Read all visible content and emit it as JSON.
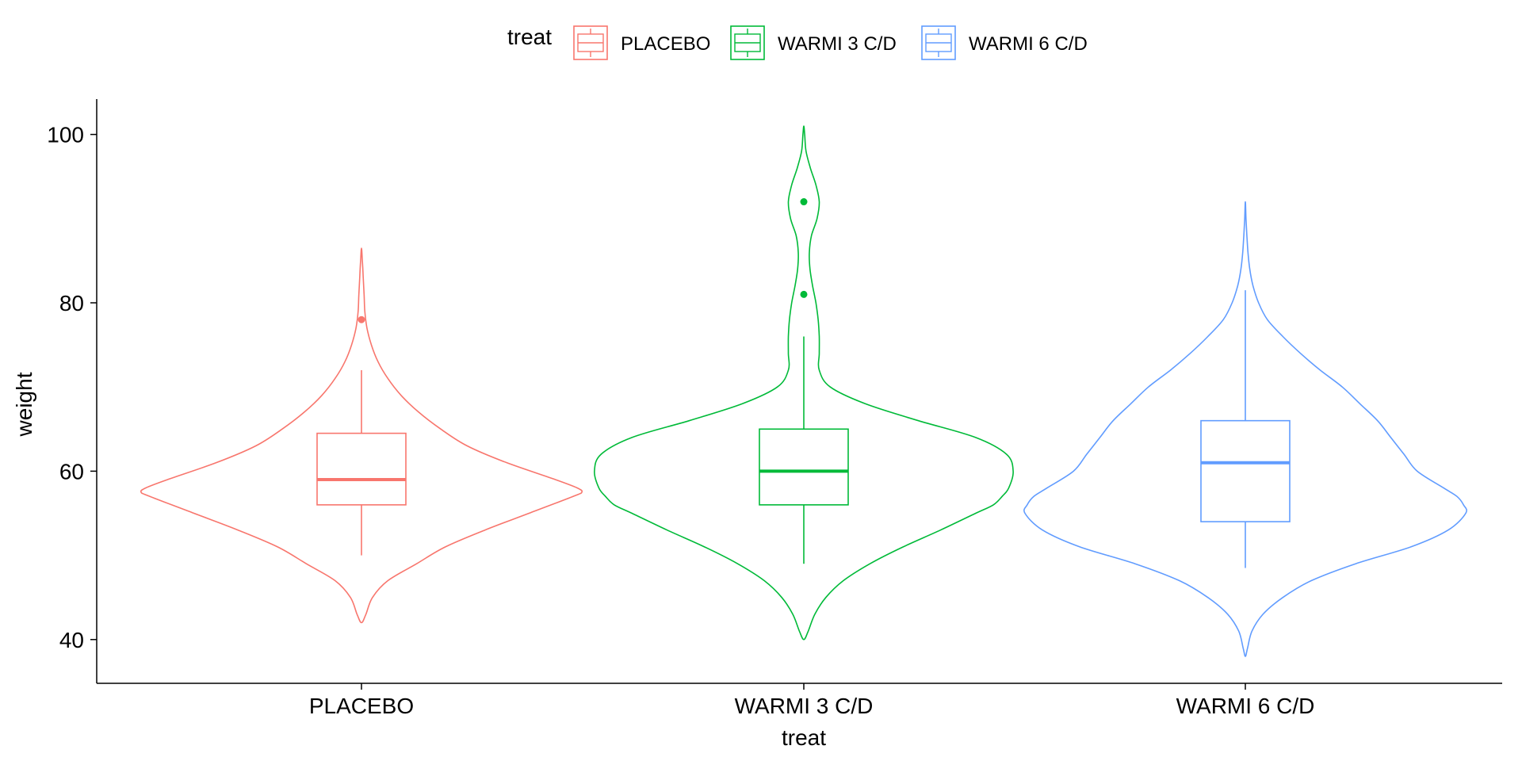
{
  "chart_data": {
    "type": "violin",
    "title": "",
    "xlabel": "treat",
    "ylabel": "weight",
    "ylim": [
      34.8,
      104.2
    ],
    "yticks": [
      40,
      60,
      80,
      100
    ],
    "categories": [
      "PLACEBO",
      "WARMI 3 C/D",
      "WARMI 6 C/D"
    ],
    "legend": {
      "title": "treat",
      "position": "top",
      "entries": [
        "PLACEBO",
        "WARMI 3 C/D",
        "WARMI 6 C/D"
      ]
    },
    "grid": false,
    "series": [
      {
        "name": "PLACEBO",
        "color": "#F8766D",
        "box": {
          "lower_whisker": 50,
          "q1": 56,
          "median": 59,
          "q3": 64.5,
          "upper_whisker": 72
        },
        "outliers": [
          78
        ],
        "violin": [
          [
            42,
            0
          ],
          [
            43,
            0.02
          ],
          [
            45,
            0.05
          ],
          [
            47,
            0.12
          ],
          [
            49,
            0.25
          ],
          [
            51,
            0.38
          ],
          [
            53,
            0.56
          ],
          [
            55,
            0.76
          ],
          [
            57,
            0.96
          ],
          [
            57.5,
            1.0
          ],
          [
            58,
            0.98
          ],
          [
            59,
            0.88
          ],
          [
            61,
            0.66
          ],
          [
            63,
            0.48
          ],
          [
            65,
            0.36
          ],
          [
            67,
            0.26
          ],
          [
            69,
            0.18
          ],
          [
            71,
            0.12
          ],
          [
            73,
            0.075
          ],
          [
            75,
            0.045
          ],
          [
            77,
            0.025
          ],
          [
            79,
            0.015
          ],
          [
            81,
            0.012
          ],
          [
            83,
            0.008
          ],
          [
            85,
            0.004
          ],
          [
            86.5,
            0
          ]
        ]
      },
      {
        "name": "WARMI 3 C/D",
        "color": "#00BA38",
        "box": {
          "lower_whisker": 49,
          "q1": 56,
          "median": 60,
          "q3": 65,
          "upper_whisker": 76
        },
        "outliers": [
          81,
          92
        ],
        "violin": [
          [
            40,
            0
          ],
          [
            41,
            0.02
          ],
          [
            43,
            0.05
          ],
          [
            45,
            0.1
          ],
          [
            47,
            0.18
          ],
          [
            49,
            0.3
          ],
          [
            51,
            0.45
          ],
          [
            53,
            0.62
          ],
          [
            55,
            0.78
          ],
          [
            56,
            0.86
          ],
          [
            57,
            0.9
          ],
          [
            58,
            0.93
          ],
          [
            60,
            0.95
          ],
          [
            62,
            0.92
          ],
          [
            64,
            0.78
          ],
          [
            66,
            0.52
          ],
          [
            68,
            0.28
          ],
          [
            70,
            0.12
          ],
          [
            72,
            0.07
          ],
          [
            74,
            0.07
          ],
          [
            76,
            0.07
          ],
          [
            78,
            0.065
          ],
          [
            80,
            0.055
          ],
          [
            82,
            0.04
          ],
          [
            84,
            0.028
          ],
          [
            86,
            0.025
          ],
          [
            88,
            0.035
          ],
          [
            90,
            0.06
          ],
          [
            92,
            0.07
          ],
          [
            94,
            0.055
          ],
          [
            96,
            0.03
          ],
          [
            98,
            0.01
          ],
          [
            100,
            0.004
          ],
          [
            101,
            0
          ]
        ]
      },
      {
        "name": "WARMI 6 C/D",
        "color": "#619CFF",
        "box": {
          "lower_whisker": 48.5,
          "q1": 54,
          "median": 61,
          "q3": 66,
          "upper_whisker": 81.5
        },
        "outliers": [],
        "violin": [
          [
            38,
            0
          ],
          [
            39,
            0.01
          ],
          [
            41,
            0.03
          ],
          [
            43,
            0.08
          ],
          [
            45,
            0.17
          ],
          [
            47,
            0.3
          ],
          [
            49,
            0.5
          ],
          [
            51,
            0.75
          ],
          [
            53,
            0.92
          ],
          [
            55,
            1.0
          ],
          [
            56,
            0.99
          ],
          [
            57,
            0.96
          ],
          [
            58,
            0.9
          ],
          [
            60,
            0.78
          ],
          [
            62,
            0.72
          ],
          [
            64,
            0.66
          ],
          [
            66,
            0.6
          ],
          [
            68,
            0.52
          ],
          [
            70,
            0.44
          ],
          [
            72,
            0.34
          ],
          [
            74,
            0.25
          ],
          [
            76,
            0.17
          ],
          [
            78,
            0.1
          ],
          [
            80,
            0.06
          ],
          [
            82,
            0.035
          ],
          [
            84,
            0.02
          ],
          [
            86,
            0.012
          ],
          [
            88,
            0.007
          ],
          [
            90,
            0.003
          ],
          [
            92,
            0
          ]
        ]
      }
    ]
  }
}
